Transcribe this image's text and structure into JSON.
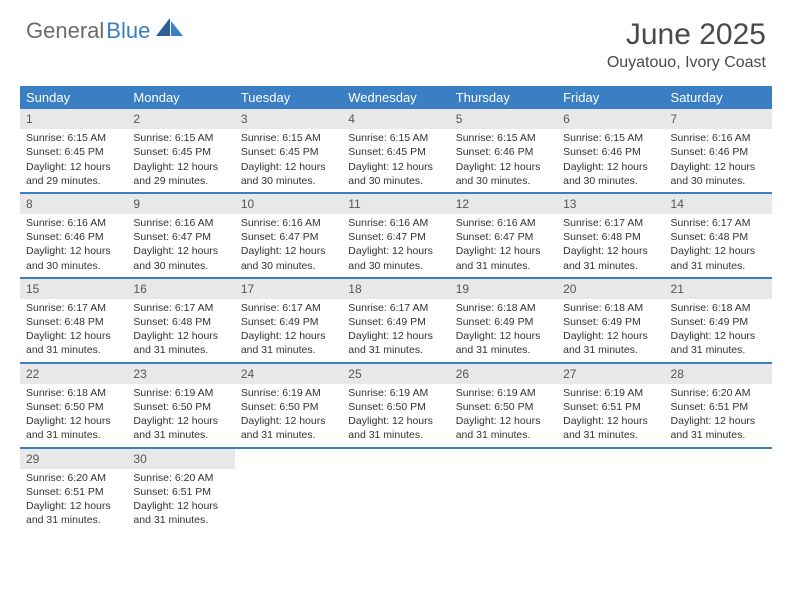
{
  "brand": {
    "name1": "General",
    "name2": "Blue"
  },
  "title": "June 2025",
  "location": "Ouyatouo, Ivory Coast",
  "colors": {
    "header_bg": "#3a7fc4",
    "header_text": "#ffffff",
    "daynum_bg": "#e8e8e8",
    "row_border": "#3a7fc4",
    "body_text": "#333333",
    "logo_gray": "#6b6b6b",
    "logo_blue": "#3a7fc4"
  },
  "weekdays": [
    "Sunday",
    "Monday",
    "Tuesday",
    "Wednesday",
    "Thursday",
    "Friday",
    "Saturday"
  ],
  "weeks": [
    [
      {
        "n": "1",
        "sr": "Sunrise: 6:15 AM",
        "ss": "Sunset: 6:45 PM",
        "d1": "Daylight: 12 hours",
        "d2": "and 29 minutes."
      },
      {
        "n": "2",
        "sr": "Sunrise: 6:15 AM",
        "ss": "Sunset: 6:45 PM",
        "d1": "Daylight: 12 hours",
        "d2": "and 29 minutes."
      },
      {
        "n": "3",
        "sr": "Sunrise: 6:15 AM",
        "ss": "Sunset: 6:45 PM",
        "d1": "Daylight: 12 hours",
        "d2": "and 30 minutes."
      },
      {
        "n": "4",
        "sr": "Sunrise: 6:15 AM",
        "ss": "Sunset: 6:45 PM",
        "d1": "Daylight: 12 hours",
        "d2": "and 30 minutes."
      },
      {
        "n": "5",
        "sr": "Sunrise: 6:15 AM",
        "ss": "Sunset: 6:46 PM",
        "d1": "Daylight: 12 hours",
        "d2": "and 30 minutes."
      },
      {
        "n": "6",
        "sr": "Sunrise: 6:15 AM",
        "ss": "Sunset: 6:46 PM",
        "d1": "Daylight: 12 hours",
        "d2": "and 30 minutes."
      },
      {
        "n": "7",
        "sr": "Sunrise: 6:16 AM",
        "ss": "Sunset: 6:46 PM",
        "d1": "Daylight: 12 hours",
        "d2": "and 30 minutes."
      }
    ],
    [
      {
        "n": "8",
        "sr": "Sunrise: 6:16 AM",
        "ss": "Sunset: 6:46 PM",
        "d1": "Daylight: 12 hours",
        "d2": "and 30 minutes."
      },
      {
        "n": "9",
        "sr": "Sunrise: 6:16 AM",
        "ss": "Sunset: 6:47 PM",
        "d1": "Daylight: 12 hours",
        "d2": "and 30 minutes."
      },
      {
        "n": "10",
        "sr": "Sunrise: 6:16 AM",
        "ss": "Sunset: 6:47 PM",
        "d1": "Daylight: 12 hours",
        "d2": "and 30 minutes."
      },
      {
        "n": "11",
        "sr": "Sunrise: 6:16 AM",
        "ss": "Sunset: 6:47 PM",
        "d1": "Daylight: 12 hours",
        "d2": "and 30 minutes."
      },
      {
        "n": "12",
        "sr": "Sunrise: 6:16 AM",
        "ss": "Sunset: 6:47 PM",
        "d1": "Daylight: 12 hours",
        "d2": "and 31 minutes."
      },
      {
        "n": "13",
        "sr": "Sunrise: 6:17 AM",
        "ss": "Sunset: 6:48 PM",
        "d1": "Daylight: 12 hours",
        "d2": "and 31 minutes."
      },
      {
        "n": "14",
        "sr": "Sunrise: 6:17 AM",
        "ss": "Sunset: 6:48 PM",
        "d1": "Daylight: 12 hours",
        "d2": "and 31 minutes."
      }
    ],
    [
      {
        "n": "15",
        "sr": "Sunrise: 6:17 AM",
        "ss": "Sunset: 6:48 PM",
        "d1": "Daylight: 12 hours",
        "d2": "and 31 minutes."
      },
      {
        "n": "16",
        "sr": "Sunrise: 6:17 AM",
        "ss": "Sunset: 6:48 PM",
        "d1": "Daylight: 12 hours",
        "d2": "and 31 minutes."
      },
      {
        "n": "17",
        "sr": "Sunrise: 6:17 AM",
        "ss": "Sunset: 6:49 PM",
        "d1": "Daylight: 12 hours",
        "d2": "and 31 minutes."
      },
      {
        "n": "18",
        "sr": "Sunrise: 6:17 AM",
        "ss": "Sunset: 6:49 PM",
        "d1": "Daylight: 12 hours",
        "d2": "and 31 minutes."
      },
      {
        "n": "19",
        "sr": "Sunrise: 6:18 AM",
        "ss": "Sunset: 6:49 PM",
        "d1": "Daylight: 12 hours",
        "d2": "and 31 minutes."
      },
      {
        "n": "20",
        "sr": "Sunrise: 6:18 AM",
        "ss": "Sunset: 6:49 PM",
        "d1": "Daylight: 12 hours",
        "d2": "and 31 minutes."
      },
      {
        "n": "21",
        "sr": "Sunrise: 6:18 AM",
        "ss": "Sunset: 6:49 PM",
        "d1": "Daylight: 12 hours",
        "d2": "and 31 minutes."
      }
    ],
    [
      {
        "n": "22",
        "sr": "Sunrise: 6:18 AM",
        "ss": "Sunset: 6:50 PM",
        "d1": "Daylight: 12 hours",
        "d2": "and 31 minutes."
      },
      {
        "n": "23",
        "sr": "Sunrise: 6:19 AM",
        "ss": "Sunset: 6:50 PM",
        "d1": "Daylight: 12 hours",
        "d2": "and 31 minutes."
      },
      {
        "n": "24",
        "sr": "Sunrise: 6:19 AM",
        "ss": "Sunset: 6:50 PM",
        "d1": "Daylight: 12 hours",
        "d2": "and 31 minutes."
      },
      {
        "n": "25",
        "sr": "Sunrise: 6:19 AM",
        "ss": "Sunset: 6:50 PM",
        "d1": "Daylight: 12 hours",
        "d2": "and 31 minutes."
      },
      {
        "n": "26",
        "sr": "Sunrise: 6:19 AM",
        "ss": "Sunset: 6:50 PM",
        "d1": "Daylight: 12 hours",
        "d2": "and 31 minutes."
      },
      {
        "n": "27",
        "sr": "Sunrise: 6:19 AM",
        "ss": "Sunset: 6:51 PM",
        "d1": "Daylight: 12 hours",
        "d2": "and 31 minutes."
      },
      {
        "n": "28",
        "sr": "Sunrise: 6:20 AM",
        "ss": "Sunset: 6:51 PM",
        "d1": "Daylight: 12 hours",
        "d2": "and 31 minutes."
      }
    ],
    [
      {
        "n": "29",
        "sr": "Sunrise: 6:20 AM",
        "ss": "Sunset: 6:51 PM",
        "d1": "Daylight: 12 hours",
        "d2": "and 31 minutes."
      },
      {
        "n": "30",
        "sr": "Sunrise: 6:20 AM",
        "ss": "Sunset: 6:51 PM",
        "d1": "Daylight: 12 hours",
        "d2": "and 31 minutes."
      },
      null,
      null,
      null,
      null,
      null
    ]
  ]
}
